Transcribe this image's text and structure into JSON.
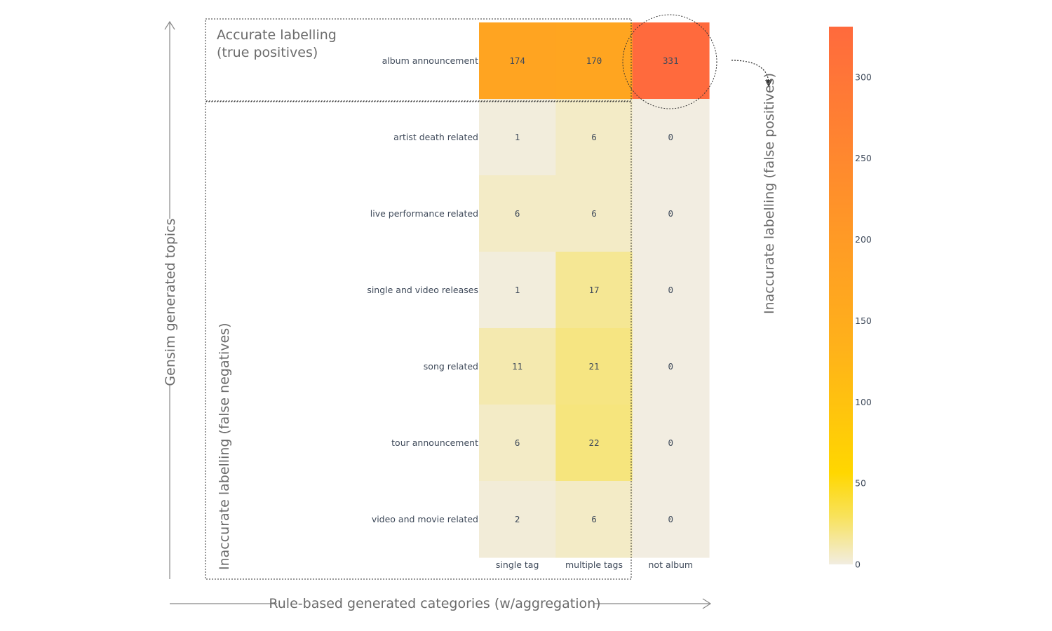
{
  "chart_data": {
    "type": "heatmap",
    "x_categories": [
      "single tag",
      "multiple tags",
      "not album"
    ],
    "y_categories": [
      "album announcement",
      "artist death related",
      "live performance related",
      "single and video releases",
      "song related",
      "tour announcement",
      "video and movie related"
    ],
    "values": [
      [
        174,
        170,
        331
      ],
      [
        1,
        6,
        0
      ],
      [
        6,
        6,
        0
      ],
      [
        1,
        17,
        0
      ],
      [
        11,
        21,
        0
      ],
      [
        6,
        22,
        0
      ],
      [
        2,
        6,
        0
      ]
    ],
    "zlim": [
      0,
      331
    ],
    "colorscale_ticks": [
      0,
      50,
      100,
      150,
      200,
      250,
      300
    ],
    "colorscale": [
      {
        "stop": 0.0,
        "color": "#f2ede1"
      },
      {
        "stop": 0.09,
        "color": "#f8e25a"
      },
      {
        "stop": 0.17,
        "color": "#ffd700"
      },
      {
        "stop": 0.4,
        "color": "#ffb21a"
      },
      {
        "stop": 0.6,
        "color": "#ff9b25"
      },
      {
        "stop": 1.0,
        "color": "#ff6a3d"
      }
    ],
    "xlabel": "Rule-based generated categories (w/aggregation)",
    "ylabel": "Gensim generated topics",
    "annotations": {
      "true_positives_line1": "Accurate labelling",
      "true_positives_line2": "(true positives)",
      "false_negatives": "Inaccurate labelling (false negatives)",
      "false_positives": "Inaccurate labelling (false positives)"
    }
  }
}
